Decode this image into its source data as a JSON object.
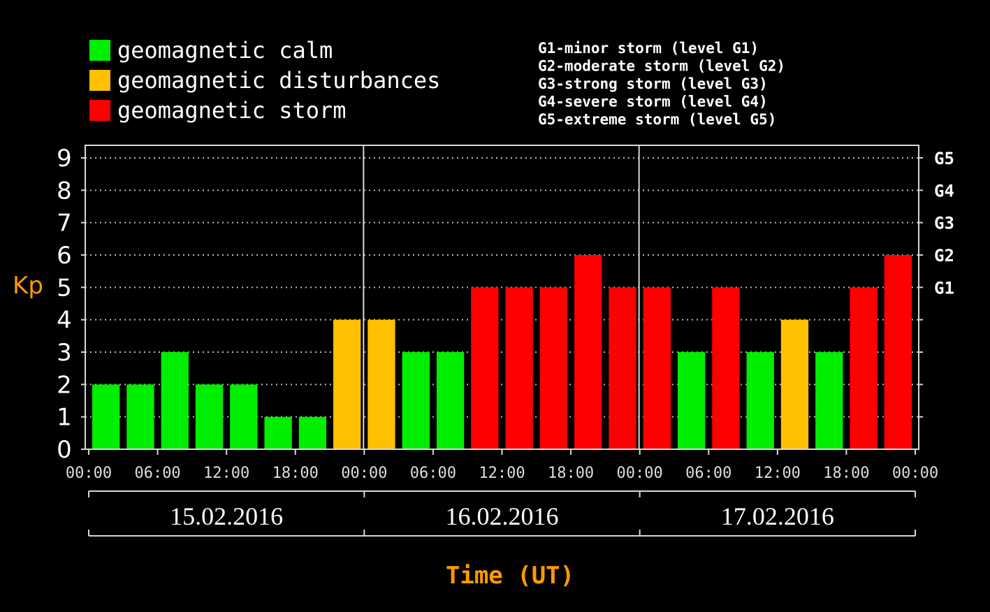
{
  "chart_data": {
    "type": "bar",
    "ylabel": "Kp",
    "xlabel": "Time (UT)",
    "ylim": [
      0,
      9
    ],
    "yticks": [
      "0",
      "1",
      "2",
      "3",
      "4",
      "5",
      "6",
      "7",
      "8",
      "9"
    ],
    "right_axis": [
      {
        "label": "G1",
        "value": 5
      },
      {
        "label": "G2",
        "value": 6
      },
      {
        "label": "G3",
        "value": 7
      },
      {
        "label": "G4",
        "value": 8
      },
      {
        "label": "G5",
        "value": 9
      }
    ],
    "legend": [
      {
        "label": "geomagnetic calm",
        "color": "#00ee00",
        "key": "calm"
      },
      {
        "label": "geomagnetic disturbances",
        "color": "#ffc000",
        "key": "disturbance"
      },
      {
        "label": "geomagnetic storm",
        "color": "#ff0000",
        "key": "storm"
      }
    ],
    "storm_levels": [
      "G1-minor storm (level G1)",
      "G2-moderate storm (level G2)",
      "G3-strong storm (level G3)",
      "G4-severe storm (level G4)",
      "G5-extreme storm (level G5)"
    ],
    "days": [
      "15.02.2016",
      "16.02.2016",
      "17.02.2016"
    ],
    "xticks": [
      "00:00",
      "06:00",
      "12:00",
      "18:00",
      "00:00",
      "06:00",
      "12:00",
      "18:00",
      "00:00",
      "06:00",
      "12:00",
      "18:00",
      "00:00"
    ],
    "values": [
      2,
      2,
      3,
      2,
      2,
      1,
      1,
      4,
      4,
      3,
      3,
      5,
      5,
      5,
      6,
      5,
      5,
      3,
      5,
      3,
      4,
      3,
      5,
      6
    ],
    "categories": [
      "calm",
      "calm",
      "calm",
      "calm",
      "calm",
      "calm",
      "calm",
      "disturbance",
      "disturbance",
      "calm",
      "calm",
      "storm",
      "storm",
      "storm",
      "storm",
      "storm",
      "storm",
      "calm",
      "storm",
      "calm",
      "disturbance",
      "calm",
      "storm",
      "storm"
    ],
    "grid": true
  }
}
